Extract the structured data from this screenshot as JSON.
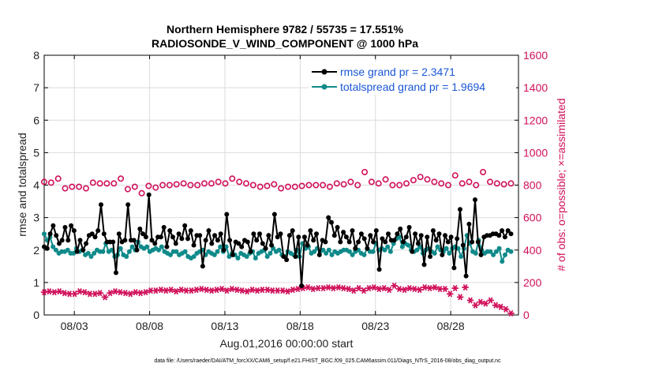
{
  "chart_data": {
    "type": "line",
    "title": "Northern Hemisphere 9782 / 55735 = 17.551%",
    "subtitle": "RADIOSONDE_V_WIND_COMPONENT @ 1000 hPa",
    "xlabel": "Aug.01,2016 00:00:00 start",
    "ylabel": "rmse and totalspread",
    "ylabel_right": "# of obs: o=possible; ×=assimilated",
    "footnote": "data file: /Users/raeder/DAI/ATM_forcXX/CAM6_setup/f.e21.FHIST_BGC.f09_025.CAM6assim.011/Diags_NTrS_2016-08/obs_diag_output.nc",
    "xlim": [
      1,
      32.5
    ],
    "ylim": [
      0,
      8
    ],
    "ylim_right": [
      0,
      1600
    ],
    "xticks": [
      3,
      8,
      13,
      18,
      23,
      28
    ],
    "xtick_labels": [
      "08/03",
      "08/08",
      "08/13",
      "08/18",
      "08/23",
      "08/28"
    ],
    "yticks": [
      "0",
      "1",
      "2",
      "3",
      "4",
      "5",
      "6",
      "7",
      "8"
    ],
    "yticks_right": [
      "0",
      "200",
      "400",
      "600",
      "800",
      "1000",
      "1200",
      "1400",
      "1600"
    ],
    "grid": true,
    "legend_position": "top-right",
    "colors": {
      "rmse": "#000000",
      "spread": "#0f8a8a",
      "obs": "#d0105a",
      "legend_text": "#1a56d6"
    },
    "series": [
      {
        "name": "rmse grand pr = 2.3471",
        "marker": "dot",
        "values": [
          2.1,
          2.05,
          2.5,
          2.75,
          2.45,
          2.2,
          2.3,
          2.7,
          2.3,
          2.75,
          2.6,
          1.95,
          2.3,
          2.0,
          2.2,
          2.45,
          2.5,
          2.4,
          2.6,
          3.4,
          2.5,
          2.25,
          2.25,
          2.25,
          1.3,
          2.5,
          2.25,
          2.3,
          3.4,
          2.3,
          2.3,
          2.0,
          2.65,
          2.5,
          2.4,
          3.7,
          2.3,
          2.2,
          2.4,
          2.4,
          2.7,
          2.1,
          2.6,
          2.4,
          2.2,
          2.5,
          2.35,
          2.75,
          2.35,
          2.6,
          2.15,
          2.45,
          2.45,
          1.5,
          2.3,
          2.6,
          2.2,
          2.45,
          2.3,
          2.5,
          2.0,
          3.1,
          2.3,
          1.85,
          2.25,
          2.2,
          2.1,
          2.3,
          2.25,
          1.95,
          2.5,
          2.3,
          2.5,
          2.2,
          2.05,
          2.45,
          2.15,
          3.1,
          2.4,
          2.5,
          1.8,
          1.7,
          2.45,
          2.6,
          1.8,
          2.4,
          0.9,
          2.4,
          2.15,
          2.6,
          2.3,
          2.5,
          1.85,
          2.3,
          2.25,
          3.0,
          2.85,
          2.45,
          2.7,
          2.25,
          2.55,
          2.4,
          2.25,
          2.6,
          2.05,
          2.25,
          2.5,
          2.35,
          2.05,
          2.45,
          2.25,
          2.6,
          1.4,
          2.35,
          2.25,
          2.5,
          2.3,
          2.3,
          2.5,
          2.65,
          2.25,
          2.4,
          2.7,
          1.95,
          2.5,
          2.2,
          2.45,
          1.55,
          2.4,
          1.8,
          2.6,
          2.3,
          2.5,
          1.85,
          2.45,
          2.25,
          2.4,
          1.45,
          2.35,
          3.25,
          2.15,
          1.2,
          2.8,
          2.25,
          3.55,
          2.25,
          1.85,
          2.4,
          2.45,
          2.45,
          2.5,
          2.5,
          2.45,
          2.6,
          2.4,
          2.6,
          2.5
        ]
      },
      {
        "name": "totalspread grand pr = 1.9694",
        "marker": "dot",
        "values": [
          2.5,
          2.3,
          2.4,
          2.1,
          2.0,
          1.9,
          1.95,
          1.95,
          2.0,
          1.9,
          1.9,
          2.05,
          1.95,
          2.0,
          1.85,
          1.9,
          1.8,
          1.9,
          2.0,
          1.95,
          1.95,
          2.2,
          1.95,
          2.0,
          1.8,
          1.85,
          2.05,
          1.85,
          1.8,
          1.95,
          2.1,
          2.0,
          2.25,
          2.1,
          2.05,
          2.1,
          1.95,
          2.0,
          2.05,
          2.0,
          2.1,
          1.95,
          1.9,
          1.85,
          1.95,
          1.95,
          1.85,
          1.9,
          1.95,
          1.8,
          1.75,
          1.8,
          1.9,
          1.95,
          2.0,
          1.85,
          1.95,
          1.9,
          1.85,
          1.95,
          2.1,
          1.95,
          2.1,
          1.8,
          1.9,
          1.85,
          1.75,
          1.9,
          1.85,
          1.8,
          1.9,
          1.95,
          1.75,
          1.9,
          1.95,
          2.0,
          1.8,
          1.9,
          2.05,
          1.95,
          2.0,
          1.85,
          1.8,
          1.95,
          1.9,
          1.85,
          2.0,
          1.8,
          2.2,
          2.05,
          2.1,
          1.9,
          1.95,
          2.05,
          1.95,
          2.0,
          1.9,
          2.0,
          1.85,
          1.95,
          1.9,
          1.95,
          2.0,
          2.0,
          1.95,
          1.85,
          1.95,
          2.0,
          1.9,
          1.85,
          2.05,
          1.95,
          1.95,
          2.2,
          2.0,
          2.05,
          2.0,
          2.1,
          1.95,
          2.2,
          2.35,
          2.4,
          2.1,
          2.2,
          2.15,
          2.0,
          1.95,
          2.0,
          2.1,
          1.9,
          2.0,
          2.05,
          1.95,
          1.9,
          2.1,
          2.0,
          1.95,
          2.05,
          1.9,
          2.05,
          2.1,
          2.05,
          1.8,
          2.05,
          2.45,
          2.2,
          1.95,
          1.9,
          2.3,
          2.0,
          1.9,
          1.95,
          1.95,
          1.85,
          1.95,
          2.05,
          1.65,
          1.85,
          2.0,
          1.95
        ]
      },
      {
        "name": "obs possible",
        "axis": "right",
        "marker": "circle",
        "values": [
          820,
          815,
          840,
          780,
          790,
          790,
          780,
          815,
          810,
          810,
          810,
          840,
          775,
          790,
          750,
          795,
          785,
          800,
          800,
          805,
          810,
          800,
          800,
          810,
          810,
          820,
          810,
          840,
          820,
          810,
          800,
          790,
          795,
          805,
          780,
          790,
          790,
          795,
          800,
          800,
          800,
          790,
          810,
          805,
          820,
          800,
          880,
          820,
          810,
          835,
          800,
          800,
          810,
          830,
          850,
          835,
          820,
          810,
          800,
          860,
          810,
          820,
          800,
          880,
          820,
          810,
          805,
          810
        ]
      },
      {
        "name": "obs assimilated",
        "axis": "right",
        "marker": "asterisk",
        "values": [
          140,
          145,
          140,
          145,
          135,
          130,
          130,
          145,
          140,
          130,
          130,
          135,
          110,
          135,
          145,
          140,
          135,
          130,
          140,
          135,
          140,
          150,
          150,
          155,
          150,
          155,
          145,
          155,
          150,
          150,
          155,
          160,
          155,
          150,
          155,
          160,
          150,
          160,
          155,
          150,
          145,
          155,
          150,
          155,
          155,
          150,
          150,
          150,
          145,
          155,
          160,
          165,
          170,
          160,
          165,
          165,
          170,
          165,
          170,
          165,
          160,
          150,
          165,
          150,
          165,
          170,
          160,
          165,
          155,
          180,
          160,
          155,
          165,
          160,
          155,
          170,
          165,
          170,
          160,
          160,
          130,
          165,
          110,
          170,
          90,
          60,
          80,
          70,
          90,
          60,
          50,
          35,
          10
        ]
      }
    ]
  }
}
